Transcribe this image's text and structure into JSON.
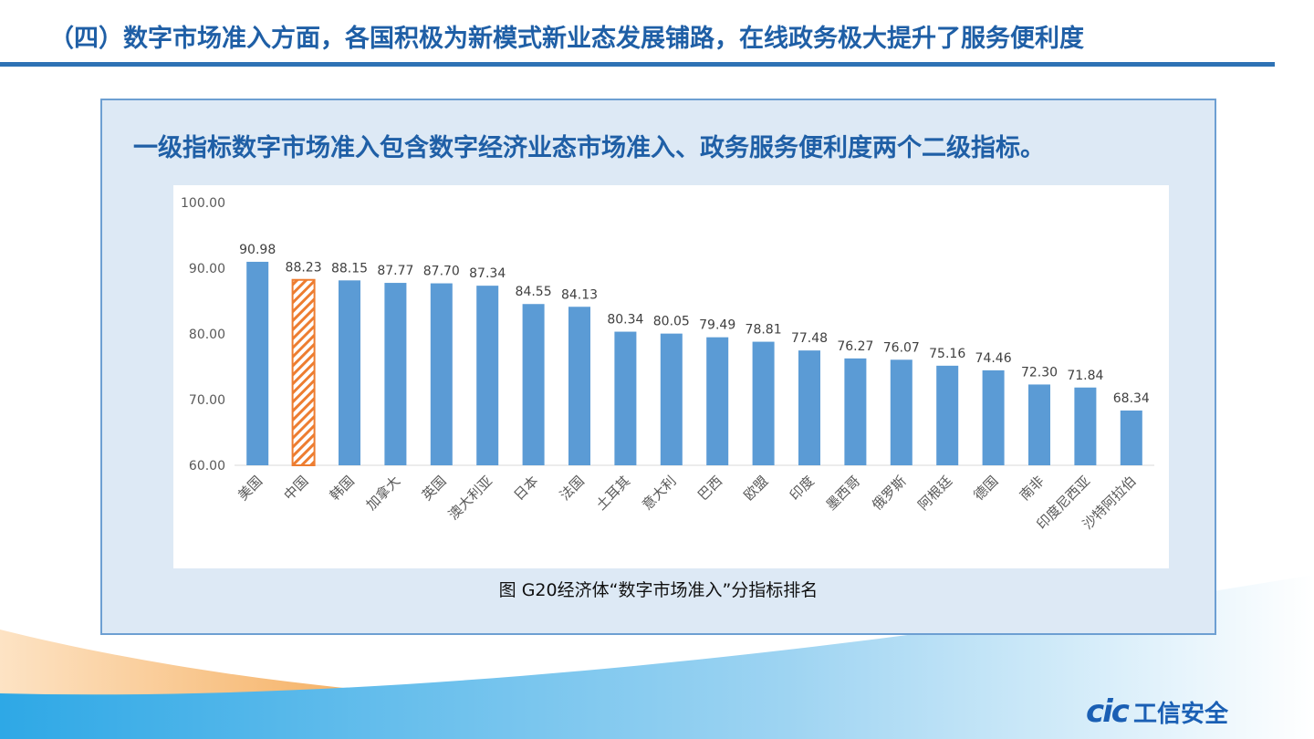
{
  "header": {
    "title": "（四）数字市场准入方面，各国积极为新模式新业态发展铺路，在线政务极大提升了服务便利度"
  },
  "panel": {
    "subtitle": "一级指标数字市场准入包含数字经济业态市场准入、政务服务便利度两个二级指标。",
    "caption": "图  G20经济体“数字市场准入”分指标排名"
  },
  "logo": {
    "latin": "cic",
    "chinese": "工信安全"
  },
  "colors": {
    "accent": "#1f5fa6",
    "bar": "#5b9bd5",
    "highlight": "#ed7d31",
    "panel": "#dde9f5"
  },
  "chart_data": {
    "type": "bar",
    "categories": [
      "美国",
      "中国",
      "韩国",
      "加拿大",
      "英国",
      "澳大利亚",
      "日本",
      "法国",
      "土耳其",
      "意大利",
      "巴西",
      "欧盟",
      "印度",
      "墨西哥",
      "俄罗斯",
      "阿根廷",
      "德国",
      "南非",
      "印度尼西亚",
      "沙特阿拉伯"
    ],
    "values": [
      90.98,
      88.23,
      88.15,
      87.77,
      87.7,
      87.34,
      84.55,
      84.13,
      80.34,
      80.05,
      79.49,
      78.81,
      77.48,
      76.27,
      76.07,
      75.16,
      74.46,
      72.3,
      71.84,
      68.34
    ],
    "labels": [
      "90.98",
      "88.23",
      "88.15",
      "87.77",
      "87.70",
      "87.34",
      "84.55",
      "84.13",
      "80.34",
      "80.05",
      "79.49",
      "78.81",
      "77.48",
      "76.27",
      "76.07",
      "75.16",
      "74.46",
      "72.30",
      "71.84",
      "68.34"
    ],
    "highlight": "中国",
    "ylim": [
      60,
      100
    ],
    "yticks": [
      "60.00",
      "70.00",
      "80.00",
      "90.00",
      "100.00"
    ],
    "grid": false,
    "xlabel": "",
    "ylabel": "",
    "title": ""
  }
}
